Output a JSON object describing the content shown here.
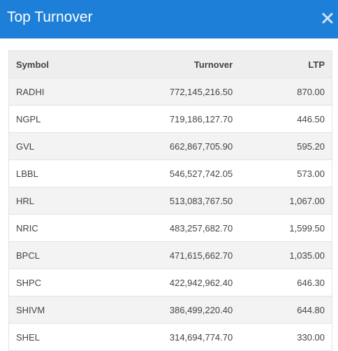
{
  "header": {
    "title": "Top Turnover"
  },
  "table": {
    "columns": [
      "Symbol",
      "Turnover",
      "LTP"
    ],
    "rows": [
      [
        "RADHI",
        "772,145,216.50",
        "870.00"
      ],
      [
        "NGPL",
        "719,186,127.70",
        "446.50"
      ],
      [
        "GVL",
        "662,867,705.90",
        "595.20"
      ],
      [
        "LBBL",
        "546,527,742.05",
        "573.00"
      ],
      [
        "HRL",
        "513,083,767.50",
        "1,067.00"
      ],
      [
        "NRIC",
        "483,257,682.70",
        "1,599.50"
      ],
      [
        "BPCL",
        "471,615,662.70",
        "1,035.00"
      ],
      [
        "SHPC",
        "422,942,962.40",
        "646.30"
      ],
      [
        "SHIVM",
        "386,499,220.40",
        "644.80"
      ],
      [
        "SHEL",
        "314,694,774.70",
        "330.00"
      ]
    ]
  }
}
